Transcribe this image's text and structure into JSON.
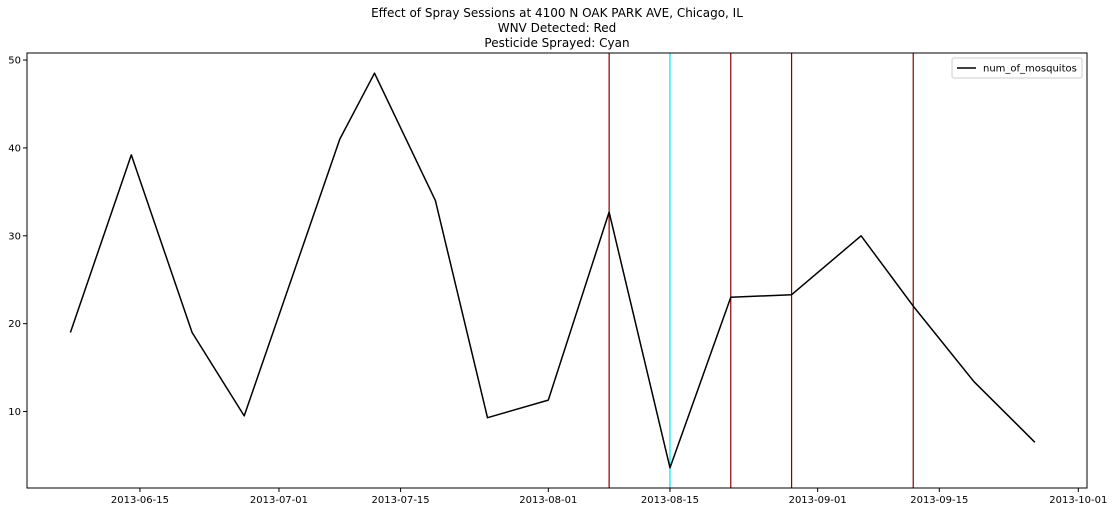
{
  "chart_data": {
    "type": "line",
    "title_lines": [
      "Effect of Spray Sessions at 4100  N OAK PARK AVE, Chicago, IL",
      "WNV Detected: Red",
      "Pesticide Sprayed: Cyan"
    ],
    "xlabel": "",
    "ylabel": "",
    "x_ticks": [
      "2013-06-15",
      "2013-07-01",
      "2013-07-15",
      "2013-08-01",
      "2013-08-15",
      "2013-09-01",
      "2013-09-15",
      "2013-10-01"
    ],
    "y_ticks": [
      10,
      20,
      30,
      40,
      50
    ],
    "xlim": [
      "2013-06-02",
      "2013-10-02"
    ],
    "ylim": [
      1.3,
      50.8
    ],
    "grid": false,
    "legend_position": "top-right",
    "series": [
      {
        "name": "num_of_mosquitos",
        "color": "#000000",
        "points": [
          {
            "x": "2013-06-07",
            "y": 19.0
          },
          {
            "x": "2013-06-14",
            "y": 39.2
          },
          {
            "x": "2013-06-21",
            "y": 19.0
          },
          {
            "x": "2013-06-27",
            "y": 9.5
          },
          {
            "x": "2013-07-08",
            "y": 41.0
          },
          {
            "x": "2013-07-12",
            "y": 48.5
          },
          {
            "x": "2013-07-19",
            "y": 34.0
          },
          {
            "x": "2013-07-25",
            "y": 9.3
          },
          {
            "x": "2013-08-01",
            "y": 11.3
          },
          {
            "x": "2013-08-08",
            "y": 32.7
          },
          {
            "x": "2013-08-15",
            "y": 3.6
          },
          {
            "x": "2013-08-22",
            "y": 23.0
          },
          {
            "x": "2013-08-29",
            "y": 23.3
          },
          {
            "x": "2013-09-06",
            "y": 30.0
          },
          {
            "x": "2013-09-12",
            "y": 22.0
          },
          {
            "x": "2013-09-19",
            "y": 13.4
          },
          {
            "x": "2013-09-26",
            "y": 6.5
          }
        ]
      }
    ],
    "vertical_lines": [
      {
        "x": "2013-08-08",
        "color": "#8b0000"
      },
      {
        "x": "2013-08-15",
        "color": "#00e5ee"
      },
      {
        "x": "2013-08-22",
        "color": "#8b0000"
      },
      {
        "x": "2013-08-29",
        "color": "#8b0000"
      },
      {
        "x": "2013-09-12",
        "color": "#8b0000"
      }
    ]
  }
}
